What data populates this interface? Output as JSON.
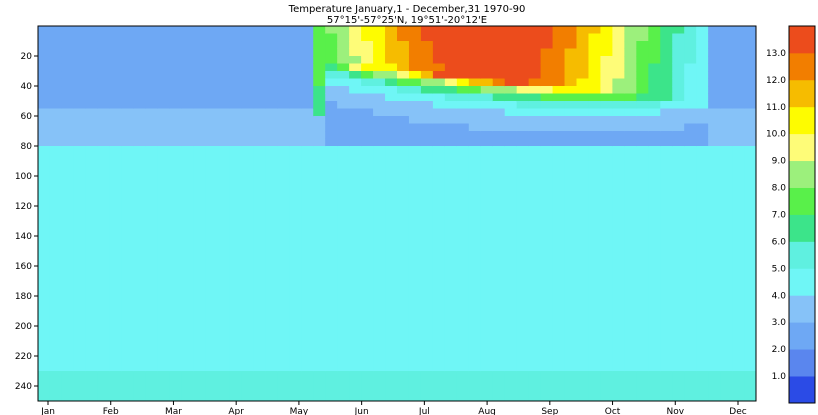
{
  "chart_data": {
    "type": "heatmap",
    "title_lines": [
      "Temperature January,1 - December,31  1970-90",
      "57°15'-57°25'N, 19°51'-20°12'E"
    ],
    "xlabel": "",
    "ylabel": "",
    "x_tick_labels": [
      "Jan",
      "Feb",
      "Mar",
      "Apr",
      "May",
      "Jun",
      "Jul",
      "Aug",
      "Sep",
      "Oct",
      "Nov",
      "Dec"
    ],
    "y_tick_labels": [
      "20",
      "40",
      "60",
      "80",
      "100",
      "120",
      "140",
      "160",
      "180",
      "200",
      "220",
      "240"
    ],
    "ylim": [
      250,
      0
    ],
    "xlim": [
      0,
      11
    ],
    "colorbar": {
      "levels": [
        "1.0",
        "2.0",
        "3.0",
        "4.0",
        "5.0",
        "6.0",
        "7.0",
        "8.0",
        "9.0",
        "10.0",
        "11.0",
        "12.0",
        "13.0"
      ],
      "colors": [
        "#2b4be6",
        "#5a86ee",
        "#6ea8f4",
        "#86c2f8",
        "#6ff6f6",
        "#5ff0e0",
        "#3ce48a",
        "#59f04a",
        "#9cf07c",
        "#fefc78",
        "#fefc00",
        "#f6bc00",
        "#f27e00",
        "#ec4c1c"
      ]
    },
    "depths": [
      0,
      10,
      20,
      30,
      40,
      50,
      60,
      70,
      80,
      90,
      100,
      120,
      140,
      160,
      180,
      200,
      220,
      240,
      250
    ],
    "months": [
      0,
      1,
      2,
      3,
      4,
      5,
      6,
      7,
      8,
      9,
      10,
      11
    ],
    "grid": false,
    "legend": "colorbar right"
  }
}
